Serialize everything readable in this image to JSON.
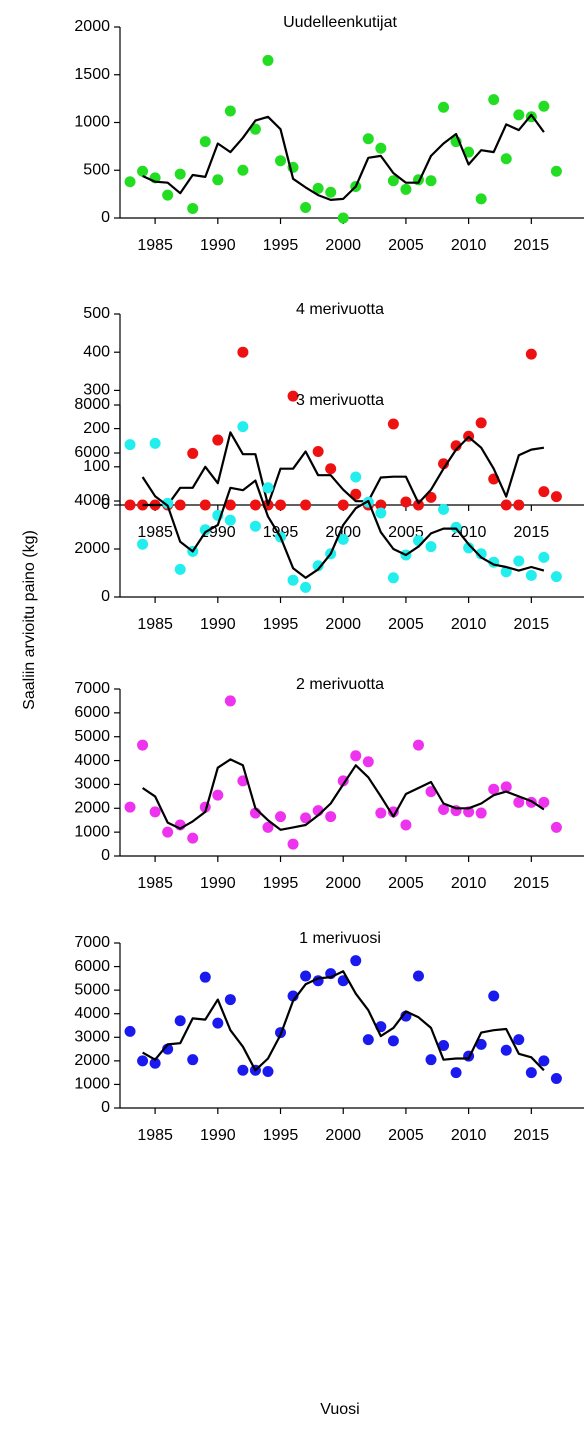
{
  "ylabel": "Saaliin arvioitu paino (kg)",
  "xlabel": "Vuosi",
  "chart_data": [
    {
      "type": "scatter",
      "title": "Uudelleenkutijat",
      "xlim": [
        1982.2,
        2019.2
      ],
      "xticks": [
        1985,
        1990,
        1995,
        2000,
        2005,
        2010,
        2015
      ],
      "ylim": [
        0,
        2000
      ],
      "yticks": [
        0,
        500,
        1000,
        1500,
        2000
      ],
      "series": [
        {
          "mark": "dot",
          "color": "#22dd22",
          "x": [
            1983,
            1984,
            1985,
            1986,
            1987,
            1988,
            1989,
            1990,
            1991,
            1992,
            1993,
            1994,
            1995,
            1996,
            1997,
            1998,
            1999,
            2000,
            2001,
            2002,
            2003,
            2004,
            2005,
            2006,
            2007,
            2008,
            2009,
            2010,
            2011,
            2012,
            2013,
            2014,
            2015,
            2016,
            2017
          ],
          "values": [
            380,
            490,
            420,
            240,
            460,
            100,
            800,
            400,
            1120,
            500,
            930,
            1650,
            600,
            530,
            110,
            310,
            270,
            0,
            330,
            830,
            730,
            390,
            300,
            400,
            390,
            1160,
            800,
            690,
            200,
            1240,
            620,
            1080,
            1060,
            1170,
            490
          ]
        },
        {
          "mark": "line",
          "color": "#000000",
          "x": [
            1984,
            1985,
            1986,
            1987,
            1988,
            1989,
            1990,
            1991,
            1992,
            1993,
            1994,
            1995,
            1996,
            1997,
            1998,
            1999,
            2000,
            2001,
            2002,
            2003,
            2004,
            2005,
            2006,
            2007,
            2008,
            2009,
            2010,
            2011,
            2012,
            2013,
            2014,
            2015,
            2016
          ],
          "values": [
            440,
            380,
            370,
            260,
            450,
            430,
            780,
            690,
            840,
            1020,
            1060,
            930,
            410,
            320,
            240,
            190,
            200,
            330,
            630,
            650,
            470,
            370,
            370,
            650,
            780,
            880,
            560,
            710,
            690,
            980,
            920,
            1080,
            900
          ]
        }
      ]
    },
    {
      "type": "scatter",
      "title": "4 merivuotta",
      "xlim": [
        1982.2,
        2019.2
      ],
      "xticks": [
        1985,
        1990,
        1995,
        2000,
        2005,
        2010,
        2015
      ],
      "ylim": [
        0,
        500
      ],
      "yticks": [
        0,
        100,
        200,
        300,
        400,
        500
      ],
      "series": [
        {
          "mark": "dot",
          "color": "#ee1111",
          "x": [
            1983,
            1984,
            1985,
            1986,
            1987,
            1988,
            1989,
            1990,
            1991,
            1992,
            1993,
            1994,
            1995,
            1996,
            1997,
            1998,
            1999,
            2000,
            2001,
            2002,
            2003,
            2004,
            2005,
            2006,
            2007,
            2008,
            2009,
            2010,
            2011,
            2012,
            2013,
            2014,
            2015,
            2016,
            2017
          ],
          "values": [
            0,
            0,
            0,
            0,
            0,
            135,
            0,
            170,
            0,
            400,
            0,
            0,
            0,
            285,
            0,
            140,
            95,
            0,
            28,
            0,
            0,
            212,
            8,
            0,
            20,
            108,
            155,
            180,
            215,
            68,
            0,
            0,
            395,
            35,
            22
          ]
        },
        {
          "mark": "line",
          "color": "#000000",
          "x": [
            1984,
            1985,
            1986,
            1987,
            1988,
            1989,
            1990,
            1991,
            1992,
            1993,
            1994,
            1995,
            1996,
            1997,
            1998,
            1999,
            2000,
            2001,
            2002,
            2003,
            2004,
            2005,
            2006,
            2007,
            2008,
            2009,
            2010,
            2011,
            2012,
            2013,
            2014,
            2015,
            2016
          ],
          "values": [
            0,
            0,
            0,
            45,
            45,
            100,
            57,
            190,
            133,
            133,
            0,
            95,
            95,
            140,
            78,
            78,
            40,
            10,
            10,
            72,
            74,
            74,
            5,
            40,
            95,
            145,
            178,
            150,
            95,
            22,
            130,
            145,
            150
          ]
        }
      ]
    },
    {
      "type": "scatter",
      "title": "3 merivuotta",
      "xlim": [
        1982.2,
        2019.2
      ],
      "xticks": [
        1985,
        1990,
        1995,
        2000,
        2005,
        2010,
        2015
      ],
      "ylim": [
        0,
        8000
      ],
      "yticks": [
        0,
        2000,
        4000,
        6000,
        8000
      ],
      "series": [
        {
          "mark": "dot",
          "color": "#22eeee",
          "x": [
            1983,
            1984,
            1985,
            1986,
            1987,
            1988,
            1989,
            1990,
            1991,
            1992,
            1993,
            1994,
            1995,
            1996,
            1997,
            1998,
            1999,
            2000,
            2001,
            2002,
            2003,
            2004,
            2005,
            2006,
            2007,
            2008,
            2009,
            2010,
            2011,
            2012,
            2013,
            2014,
            2015,
            2016,
            2017
          ],
          "values": [
            6350,
            2200,
            6400,
            3900,
            1150,
            1900,
            2800,
            3400,
            3200,
            7100,
            2950,
            4550,
            2500,
            700,
            400,
            1300,
            1800,
            2400,
            5000,
            3950,
            3500,
            800,
            1750,
            2350,
            2100,
            3650,
            2900,
            2050,
            1800,
            1450,
            1050,
            1500,
            900,
            1650,
            850
          ]
        },
        {
          "mark": "line",
          "color": "#000000",
          "x": [
            1984,
            1985,
            1986,
            1987,
            1988,
            1989,
            1990,
            1991,
            1992,
            1993,
            1994,
            1995,
            1996,
            1997,
            1998,
            1999,
            2000,
            2001,
            2002,
            2003,
            2004,
            2005,
            2006,
            2007,
            2008,
            2009,
            2010,
            2011,
            2012,
            2013,
            2014,
            2015,
            2016
          ],
          "values": [
            5000,
            4200,
            3800,
            2300,
            1900,
            2700,
            3000,
            4550,
            4450,
            4850,
            3350,
            2500,
            1200,
            800,
            1150,
            1800,
            3000,
            3700,
            4000,
            2700,
            2000,
            1750,
            2100,
            2650,
            2850,
            2850,
            2200,
            1650,
            1350,
            1250,
            1100,
            1250,
            1100
          ]
        }
      ]
    },
    {
      "type": "scatter",
      "title": "2 merivuotta",
      "xlim": [
        1982.2,
        2019.2
      ],
      "xticks": [
        1985,
        1990,
        1995,
        2000,
        2005,
        2010,
        2015
      ],
      "ylim": [
        0,
        7000
      ],
      "yticks": [
        0,
        1000,
        2000,
        3000,
        4000,
        5000,
        6000,
        7000
      ],
      "series": [
        {
          "mark": "dot",
          "color": "#ee33ee",
          "x": [
            1983,
            1984,
            1985,
            1986,
            1987,
            1988,
            1989,
            1990,
            1991,
            1992,
            1993,
            1994,
            1995,
            1996,
            1997,
            1998,
            1999,
            2000,
            2001,
            2002,
            2003,
            2004,
            2005,
            2006,
            2007,
            2008,
            2009,
            2010,
            2011,
            2012,
            2013,
            2014,
            2015,
            2016,
            2017
          ],
          "values": [
            2050,
            4650,
            1850,
            1000,
            1300,
            750,
            2050,
            2550,
            6500,
            3150,
            1800,
            1200,
            1650,
            500,
            1600,
            1900,
            1650,
            3150,
            4200,
            3950,
            1800,
            1850,
            1300,
            4650,
            2700,
            1950,
            1900,
            1850,
            1800,
            2800,
            2900,
            2250,
            2250,
            2250,
            1200
          ]
        },
        {
          "mark": "line",
          "color": "#000000",
          "x": [
            1984,
            1985,
            1986,
            1987,
            1988,
            1989,
            1990,
            1991,
            1992,
            1993,
            1994,
            1995,
            1996,
            1997,
            1998,
            1999,
            2000,
            2001,
            2002,
            2003,
            2004,
            2005,
            2006,
            2007,
            2008,
            2009,
            2010,
            2011,
            2012,
            2013,
            2014,
            2015,
            2016
          ],
          "values": [
            2850,
            2500,
            1400,
            1150,
            1450,
            1850,
            3700,
            4050,
            3800,
            2000,
            1500,
            1100,
            1200,
            1300,
            1700,
            2200,
            3000,
            3800,
            3300,
            2500,
            1650,
            2600,
            2850,
            3100,
            2200,
            2000,
            2000,
            2200,
            2550,
            2700,
            2500,
            2300,
            1950
          ]
        }
      ]
    },
    {
      "type": "scatter",
      "title": "1 merivuosi",
      "xlim": [
        1982.2,
        2019.2
      ],
      "xticks": [
        1985,
        1990,
        1995,
        2000,
        2005,
        2010,
        2015
      ],
      "ylim": [
        0,
        7000
      ],
      "yticks": [
        0,
        1000,
        2000,
        3000,
        4000,
        5000,
        6000,
        7000
      ],
      "series": [
        {
          "mark": "dot",
          "color": "#1a1aee",
          "x": [
            1983,
            1984,
            1985,
            1986,
            1987,
            1988,
            1989,
            1990,
            1991,
            1992,
            1993,
            1994,
            1995,
            1996,
            1997,
            1998,
            1999,
            2000,
            2001,
            2002,
            2003,
            2004,
            2005,
            2006,
            2007,
            2008,
            2009,
            2010,
            2011,
            2012,
            2013,
            2014,
            2015,
            2016,
            2017
          ],
          "values": [
            3250,
            2000,
            1900,
            2500,
            3700,
            2050,
            5550,
            3600,
            4600,
            1600,
            1600,
            1550,
            3200,
            4750,
            5600,
            5400,
            5700,
            5400,
            6250,
            2900,
            3450,
            2850,
            3900,
            5600,
            2050,
            2650,
            1500,
            2200,
            2700,
            4750,
            2450,
            2900,
            1500,
            2000,
            1250
          ]
        },
        {
          "mark": "line",
          "color": "#000000",
          "x": [
            1984,
            1985,
            1986,
            1987,
            1988,
            1989,
            1990,
            1991,
            1992,
            1993,
            1994,
            1995,
            1996,
            1997,
            1998,
            1999,
            2000,
            2001,
            2002,
            2003,
            2004,
            2005,
            2006,
            2007,
            2008,
            2009,
            2010,
            2011,
            2012,
            2013,
            2014,
            2015,
            2016
          ],
          "values": [
            2350,
            2050,
            2700,
            2750,
            3800,
            3750,
            4600,
            3300,
            2600,
            1600,
            2100,
            3100,
            4550,
            5250,
            5500,
            5550,
            5800,
            4850,
            4150,
            3050,
            3400,
            4100,
            3850,
            3400,
            2050,
            2100,
            2100,
            3200,
            3300,
            3350,
            2300,
            2150,
            1600
          ]
        }
      ]
    }
  ]
}
